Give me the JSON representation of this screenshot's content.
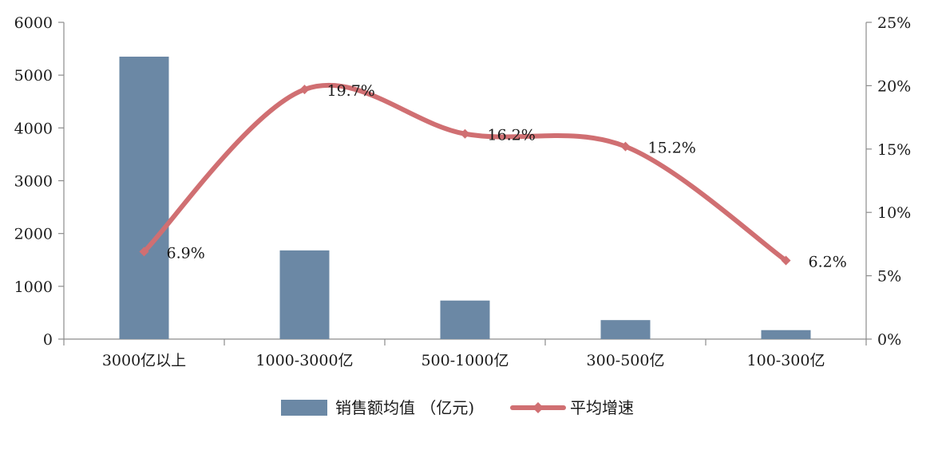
{
  "chart_data": {
    "type": "bar+line",
    "categories": [
      "3000亿以上",
      "1000-3000亿",
      "500-1000亿",
      "300-500亿",
      "100-300亿"
    ],
    "series": [
      {
        "name": "销售额均值 （亿元)",
        "type": "bar",
        "axis": "left",
        "color": "#6b88a5",
        "values": [
          5350,
          1680,
          730,
          360,
          170
        ]
      },
      {
        "name": "平均增速",
        "type": "line",
        "axis": "right",
        "color": "#d06f72",
        "values": [
          6.9,
          19.7,
          16.2,
          15.2,
          6.2
        ],
        "data_labels": [
          "6.9%",
          "19.7%",
          "16.2%",
          "15.2%",
          "6.2%"
        ]
      }
    ],
    "y_left": {
      "ylim": [
        0,
        6000
      ],
      "ticks": [
        "0",
        "1000",
        "2000",
        "3000",
        "4000",
        "5000",
        "6000"
      ]
    },
    "y_right": {
      "ylim": [
        0,
        25
      ],
      "ticks": [
        "0%",
        "5%",
        "10%",
        "15%",
        "20%",
        "25%"
      ]
    },
    "grid": false,
    "legend_position": "bottom"
  }
}
